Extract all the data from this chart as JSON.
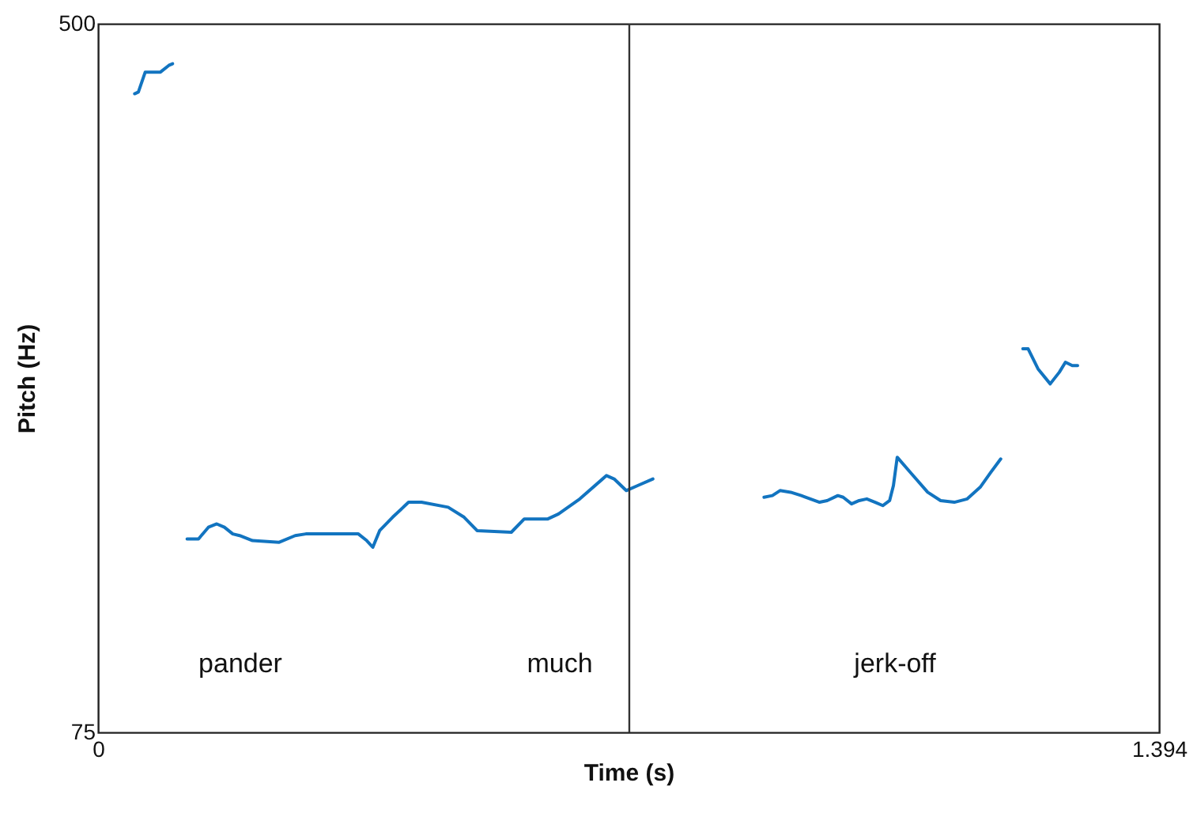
{
  "chart_data": {
    "type": "line",
    "xlabel": "Time (s)",
    "ylabel": "Pitch (Hz)",
    "xlim": [
      0,
      1.394
    ],
    "xticks": [
      0,
      1.394
    ],
    "ylim": [
      75,
      500
    ],
    "yticks": [
      75,
      500
    ],
    "series": [
      {
        "color": "#1274c0",
        "x": [
          0.048,
          0.053,
          0.062,
          0.082,
          0.093,
          0.098
        ],
        "values": [
          458,
          459,
          471,
          471,
          475,
          476
        ]
      },
      {
        "color": "#1274c0",
        "x": [
          0.117,
          0.132,
          0.145,
          0.156,
          0.166,
          0.177,
          0.186,
          0.203,
          0.238,
          0.259,
          0.273,
          0.342,
          0.353,
          0.361,
          0.37,
          0.387,
          0.408,
          0.425,
          0.46,
          0.481,
          0.498,
          0.543,
          0.56,
          0.591,
          0.605,
          0.633,
          0.668,
          0.678,
          0.694,
          0.709,
          0.729
        ],
        "values": [
          191,
          191,
          198,
          200,
          198,
          194,
          193,
          190,
          189,
          193,
          194,
          194,
          190,
          186,
          196,
          204,
          213,
          213,
          210,
          204,
          196,
          195,
          203,
          203,
          206,
          215,
          229,
          227,
          220,
          223,
          227
        ]
      },
      {
        "color": "#1274c0",
        "x": [
          0.875,
          0.886,
          0.896,
          0.91,
          0.924,
          0.948,
          0.958,
          0.972,
          0.979,
          0.99,
          1.0,
          1.01,
          1.021,
          1.031,
          1.04,
          1.045,
          1.05,
          1.069,
          1.09,
          1.107,
          1.125,
          1.142,
          1.159,
          1.173,
          1.186
        ],
        "values": [
          216,
          217,
          220,
          219,
          217,
          213,
          214,
          217,
          216,
          212,
          214,
          215,
          213,
          211,
          214,
          223,
          240,
          230,
          219,
          214,
          213,
          215,
          222,
          231,
          239
        ]
      },
      {
        "color": "#1274c0",
        "x": [
          1.215,
          1.222,
          1.235,
          1.251,
          1.263,
          1.271,
          1.28,
          1.287
        ],
        "values": [
          305,
          305,
          293,
          284,
          291,
          297,
          295,
          295
        ]
      }
    ],
    "ref_lines": [
      {
        "axis": "x",
        "value": 0.698,
        "color": "#333333"
      }
    ],
    "annotations": [
      "pander",
      "much",
      "jerk-off"
    ]
  }
}
